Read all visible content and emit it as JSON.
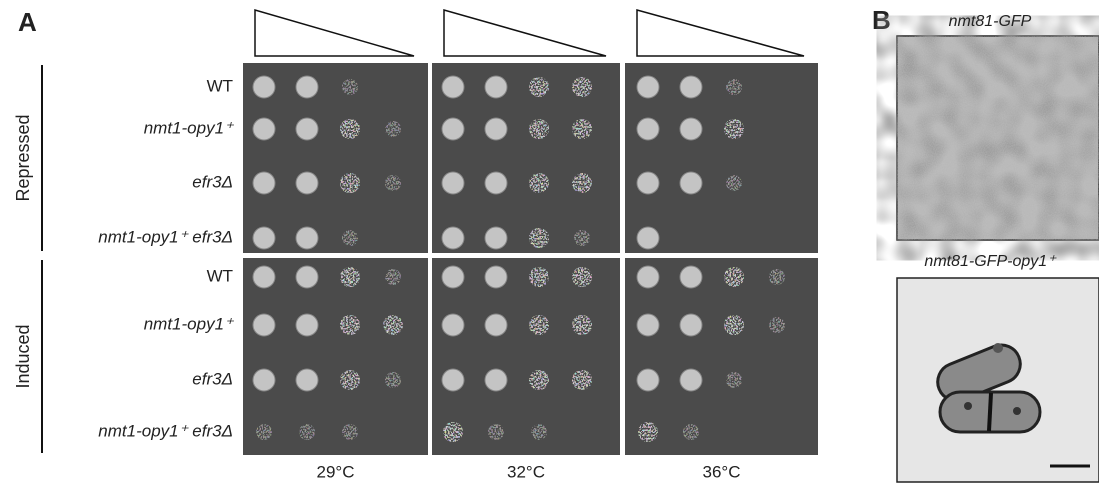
{
  "panel_a": {
    "label": "A",
    "groups": [
      {
        "label": "Repressed",
        "strains": [
          "WT",
          "nmt1-opy1⁺",
          "efr3Δ",
          "nmt1-opy1⁺ efr3Δ"
        ]
      },
      {
        "label": "Induced",
        "strains": [
          "WT",
          "nmt1-opy1⁺",
          "efr3Δ",
          "nmt1-opy1⁺ efr3Δ"
        ]
      }
    ],
    "temperatures": [
      "29°C",
      "32°C",
      "36°C"
    ]
  },
  "panel_b": {
    "label": "B",
    "images": [
      {
        "label": "nmt81-GFP"
      },
      {
        "label": "nmt81-GFP-opy1⁺"
      }
    ]
  }
}
